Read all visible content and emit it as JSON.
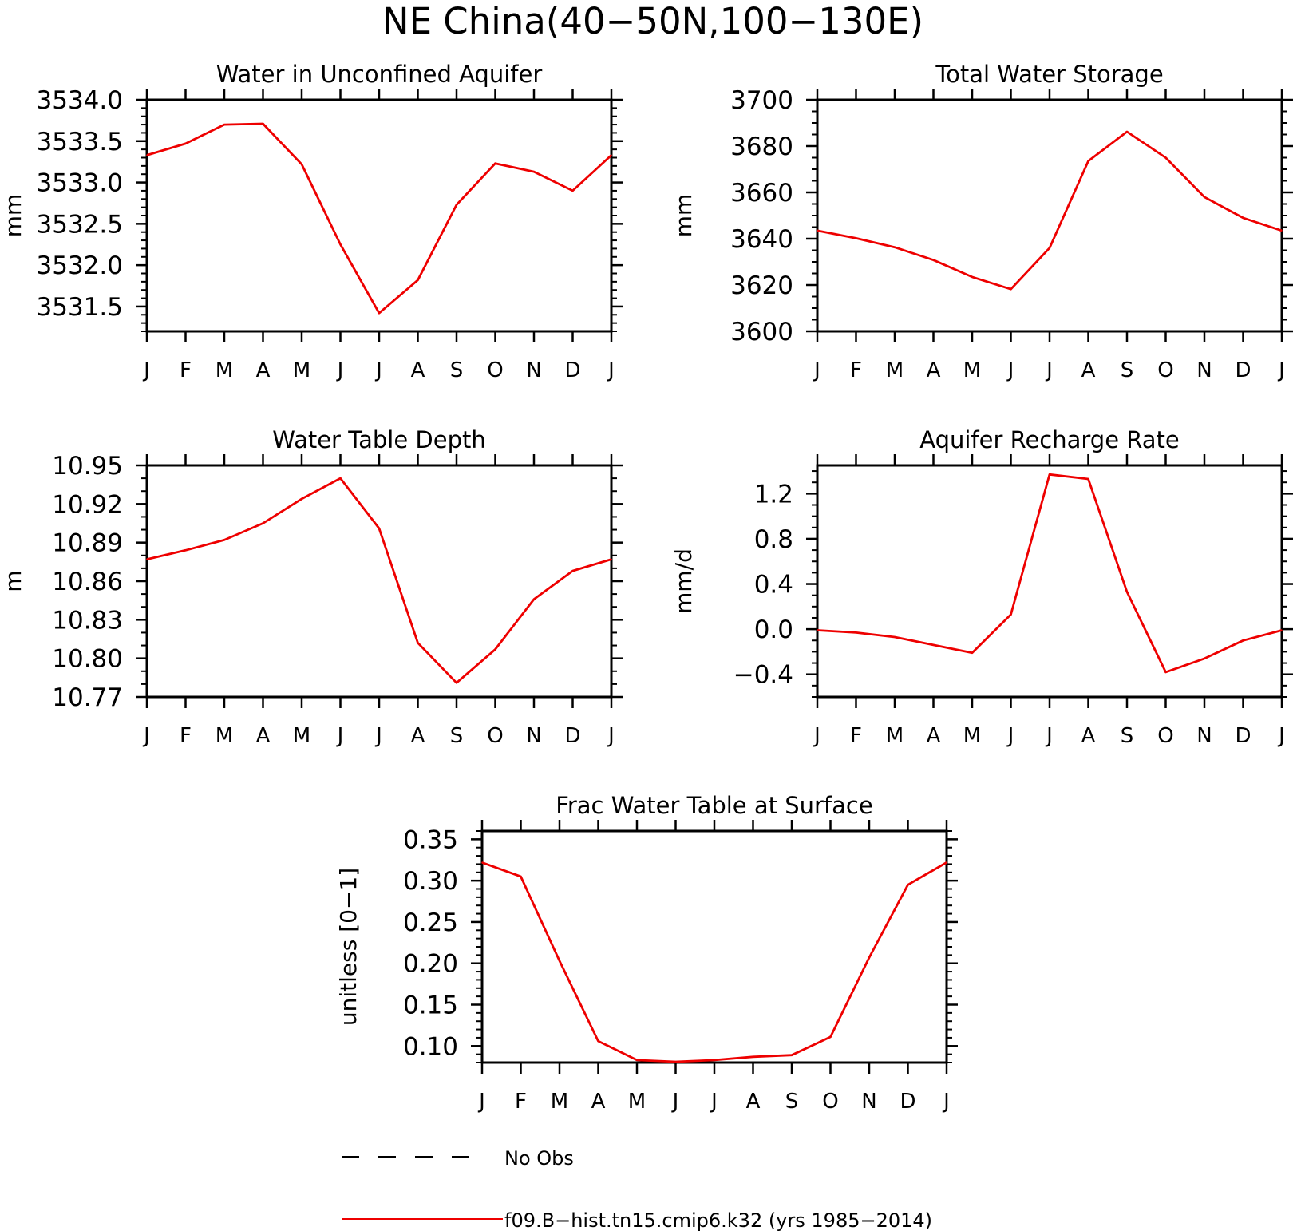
{
  "title": "NE China(40−50N,100−130E)",
  "months": [
    "J",
    "F",
    "M",
    "A",
    "M",
    "J",
    "J",
    "A",
    "S",
    "O",
    "N",
    "D",
    "J"
  ],
  "colors": {
    "series": "#ee0000",
    "axis": "#000000"
  },
  "legend": {
    "obs_label": "No Obs",
    "model_label": "f09.B−hist.tn15.cmip6.k32 (yrs 1985−2014)"
  },
  "chart_data": [
    {
      "type": "line",
      "title": "Water in Unconfined Aquifer",
      "ylabel": "mm",
      "ylim": [
        3531.2,
        3534.0
      ],
      "yticks": [
        3531.5,
        3532.0,
        3532.5,
        3533.0,
        3533.5,
        3534.0
      ],
      "ytick_labels": [
        "3531.5",
        "3532.0",
        "3532.5",
        "3533.0",
        "3533.5",
        "3534.0"
      ],
      "ymajor": 0.5,
      "yminor": 0.1,
      "series": [
        {
          "values": [
            3533.33,
            3533.47,
            3533.7,
            3533.71,
            3533.22,
            3532.25,
            3531.42,
            3531.82,
            3532.73,
            3533.23,
            3533.13,
            3532.9,
            3533.33
          ]
        }
      ]
    },
    {
      "type": "line",
      "title": "Total Water Storage",
      "ylabel": "mm",
      "ylim": [
        3600,
        3700
      ],
      "yticks": [
        3600,
        3620,
        3640,
        3660,
        3680,
        3700
      ],
      "ytick_labels": [
        "3600",
        "3620",
        "3640",
        "3660",
        "3680",
        "3700"
      ],
      "ymajor": 20,
      "yminor": 5,
      "series": [
        {
          "values": [
            3643.5,
            3640.2,
            3636.3,
            3630.8,
            3623.5,
            3618.2,
            3636.0,
            3673.5,
            3686.2,
            3675.0,
            3658.0,
            3649.0,
            3643.5
          ]
        }
      ]
    },
    {
      "type": "line",
      "title": "Water Table Depth",
      "ylabel": "m",
      "ylim": [
        10.77,
        10.95
      ],
      "yticks": [
        10.77,
        10.8,
        10.83,
        10.86,
        10.89,
        10.92,
        10.95
      ],
      "ytick_labels": [
        "10.77",
        "10.80",
        "10.83",
        "10.86",
        "10.89",
        "10.92",
        "10.95"
      ],
      "ymajor": 0.03,
      "yminor": 0.01,
      "series": [
        {
          "values": [
            10.877,
            10.884,
            10.892,
            10.905,
            10.924,
            10.94,
            10.901,
            10.812,
            10.781,
            10.807,
            10.846,
            10.868,
            10.877
          ]
        }
      ]
    },
    {
      "type": "line",
      "title": "Aquifer Recharge Rate",
      "ylabel": "mm/d",
      "ylim": [
        -0.6,
        1.45
      ],
      "yticks": [
        -0.4,
        0.0,
        0.4,
        0.8,
        1.2
      ],
      "ytick_labels": [
        "−0.4",
        "0.0",
        "0.4",
        "0.8",
        "1.2"
      ],
      "ymajor": 0.4,
      "yminor": 0.1,
      "series": [
        {
          "values": [
            -0.01,
            -0.03,
            -0.07,
            -0.14,
            -0.21,
            0.13,
            1.37,
            1.33,
            0.33,
            -0.38,
            -0.26,
            -0.1,
            -0.01
          ]
        }
      ]
    },
    {
      "type": "line",
      "title": "Frac Water Table at Surface",
      "ylabel": "unitless [0−1]",
      "ylim": [
        0.08,
        0.36
      ],
      "yticks": [
        0.1,
        0.15,
        0.2,
        0.25,
        0.3,
        0.35
      ],
      "ytick_labels": [
        "0.10",
        "0.15",
        "0.20",
        "0.25",
        "0.30",
        "0.35"
      ],
      "ymajor": 0.05,
      "yminor": 0.01,
      "series": [
        {
          "values": [
            0.322,
            0.305,
            0.203,
            0.106,
            0.083,
            0.081,
            0.083,
            0.087,
            0.089,
            0.111,
            0.207,
            0.295,
            0.322
          ]
        }
      ]
    }
  ]
}
